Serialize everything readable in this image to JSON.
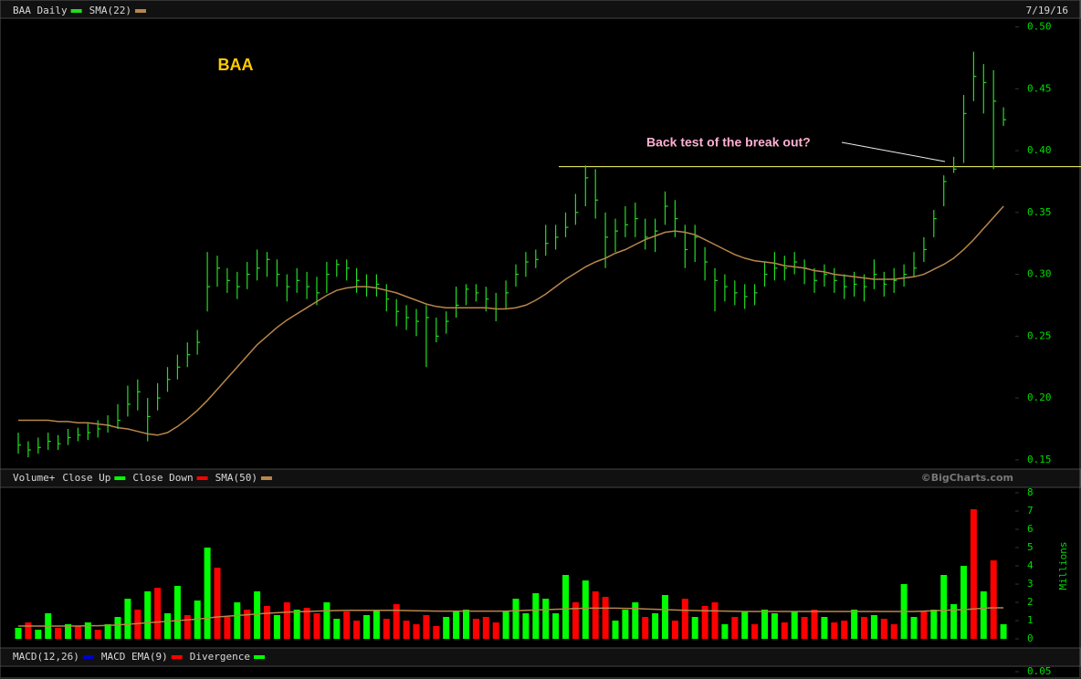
{
  "chart_data": [
    {
      "type": "ohlc",
      "title": "BAA Daily",
      "date": "7/19/16",
      "symbol": "BAA",
      "color": "#22dd22",
      "high": [
        0.172,
        0.165,
        0.168,
        0.172,
        0.17,
        0.175,
        0.176,
        0.18,
        0.182,
        0.186,
        0.195,
        0.21,
        0.215,
        0.2,
        0.212,
        0.225,
        0.235,
        0.245,
        0.255,
        0.318,
        0.315,
        0.305,
        0.302,
        0.31,
        0.32,
        0.318,
        0.312,
        0.3,
        0.305,
        0.302,
        0.298,
        0.31,
        0.312,
        0.312,
        0.305,
        0.3,
        0.3,
        0.292,
        0.28,
        0.275,
        0.272,
        0.275,
        0.265,
        0.27,
        0.29,
        0.292,
        0.292,
        0.29,
        0.285,
        0.295,
        0.308,
        0.318,
        0.32,
        0.34,
        0.34,
        0.35,
        0.365,
        0.388,
        0.385,
        0.35,
        0.345,
        0.355,
        0.358,
        0.345,
        0.345,
        0.367,
        0.36,
        0.34,
        0.34,
        0.322,
        0.305,
        0.3,
        0.295,
        0.292,
        0.292,
        0.31,
        0.318,
        0.315,
        0.318,
        0.312,
        0.305,
        0.308,
        0.305,
        0.3,
        0.302,
        0.3,
        0.312,
        0.302,
        0.305,
        0.308,
        0.318,
        0.33,
        0.352,
        0.38,
        0.395,
        0.445,
        0.48,
        0.47,
        0.465,
        0.435
      ],
      "low": [
        0.155,
        0.152,
        0.155,
        0.158,
        0.158,
        0.162,
        0.165,
        0.166,
        0.168,
        0.172,
        0.175,
        0.185,
        0.19,
        0.165,
        0.19,
        0.205,
        0.215,
        0.225,
        0.235,
        0.27,
        0.29,
        0.285,
        0.28,
        0.288,
        0.295,
        0.298,
        0.29,
        0.278,
        0.285,
        0.28,
        0.275,
        0.285,
        0.298,
        0.295,
        0.285,
        0.282,
        0.282,
        0.27,
        0.258,
        0.255,
        0.25,
        0.225,
        0.245,
        0.252,
        0.265,
        0.275,
        0.278,
        0.27,
        0.262,
        0.272,
        0.29,
        0.298,
        0.305,
        0.315,
        0.32,
        0.33,
        0.34,
        0.355,
        0.345,
        0.305,
        0.318,
        0.33,
        0.33,
        0.32,
        0.318,
        0.34,
        0.33,
        0.305,
        0.31,
        0.295,
        0.27,
        0.278,
        0.275,
        0.272,
        0.275,
        0.29,
        0.295,
        0.295,
        0.3,
        0.292,
        0.285,
        0.29,
        0.285,
        0.28,
        0.282,
        0.278,
        0.288,
        0.282,
        0.285,
        0.29,
        0.298,
        0.31,
        0.33,
        0.355,
        0.382,
        0.39,
        0.44,
        0.43,
        0.385,
        0.42
      ],
      "close": [
        0.162,
        0.158,
        0.16,
        0.165,
        0.163,
        0.168,
        0.17,
        0.172,
        0.175,
        0.178,
        0.182,
        0.195,
        0.205,
        0.185,
        0.2,
        0.215,
        0.225,
        0.235,
        0.245,
        0.29,
        0.305,
        0.295,
        0.29,
        0.3,
        0.305,
        0.312,
        0.3,
        0.29,
        0.295,
        0.29,
        0.285,
        0.3,
        0.308,
        0.305,
        0.295,
        0.29,
        0.292,
        0.28,
        0.27,
        0.265,
        0.262,
        0.265,
        0.25,
        0.262,
        0.275,
        0.288,
        0.285,
        0.28,
        0.272,
        0.285,
        0.3,
        0.31,
        0.312,
        0.325,
        0.33,
        0.338,
        0.35,
        0.378,
        0.36,
        0.33,
        0.335,
        0.34,
        0.345,
        0.33,
        0.335,
        0.355,
        0.345,
        0.32,
        0.33,
        0.31,
        0.295,
        0.29,
        0.285,
        0.282,
        0.285,
        0.3,
        0.305,
        0.305,
        0.31,
        0.305,
        0.295,
        0.3,
        0.295,
        0.29,
        0.292,
        0.29,
        0.3,
        0.292,
        0.295,
        0.3,
        0.305,
        0.32,
        0.345,
        0.375,
        0.385,
        0.43,
        0.46,
        0.455,
        0.44,
        0.425
      ],
      "sma": {
        "name": "SMA(22)",
        "color": "#b8864b",
        "values": [
          0.182,
          0.182,
          0.182,
          0.182,
          0.181,
          0.181,
          0.18,
          0.18,
          0.179,
          0.178,
          0.176,
          0.175,
          0.173,
          0.171,
          0.17,
          0.172,
          0.177,
          0.183,
          0.19,
          0.198,
          0.207,
          0.216,
          0.225,
          0.234,
          0.243,
          0.25,
          0.257,
          0.263,
          0.268,
          0.273,
          0.278,
          0.283,
          0.287,
          0.289,
          0.29,
          0.29,
          0.289,
          0.287,
          0.285,
          0.282,
          0.279,
          0.276,
          0.274,
          0.273,
          0.273,
          0.273,
          0.273,
          0.273,
          0.272,
          0.272,
          0.273,
          0.275,
          0.279,
          0.284,
          0.29,
          0.296,
          0.301,
          0.306,
          0.31,
          0.313,
          0.317,
          0.32,
          0.324,
          0.328,
          0.331,
          0.334,
          0.335,
          0.334,
          0.332,
          0.328,
          0.324,
          0.32,
          0.316,
          0.313,
          0.311,
          0.31,
          0.309,
          0.307,
          0.306,
          0.305,
          0.303,
          0.302,
          0.3,
          0.299,
          0.298,
          0.297,
          0.296,
          0.296,
          0.296,
          0.297,
          0.298,
          0.3,
          0.304,
          0.308,
          0.313,
          0.32,
          0.328,
          0.337,
          0.346,
          0.355
        ]
      },
      "annotation": {
        "text": "Back test of the break out?",
        "level": 0.387,
        "color": "#ffff66"
      },
      "ylim": [
        0.144,
        0.507
      ],
      "yticks": [
        {
          "value": 0.15,
          "label": "0.15"
        },
        {
          "value": 0.2,
          "label": "0.20"
        },
        {
          "value": 0.25,
          "label": "0.25"
        },
        {
          "value": 0.3,
          "label": "0.30"
        },
        {
          "value": 0.35,
          "label": "0.35"
        },
        {
          "value": 0.4,
          "label": "0.40"
        },
        {
          "value": 0.45,
          "label": "0.45"
        },
        {
          "value": 0.5,
          "label": "0.50"
        }
      ]
    },
    {
      "type": "bar",
      "title": "Volume+",
      "series": [
        {
          "name": "Close Up",
          "color": "#00ff00",
          "values": [
            0.6,
            null,
            0.5,
            1.4,
            null,
            0.8,
            null,
            0.9,
            null,
            0.8,
            1.2,
            2.2,
            null,
            2.6,
            null,
            1.4,
            2.9,
            null,
            2.1,
            5.0,
            null,
            null,
            2.0,
            null,
            2.6,
            null,
            1.3,
            null,
            1.6,
            null,
            null,
            2.0,
            1.1,
            null,
            null,
            1.3,
            1.6,
            null,
            null,
            null,
            null,
            null,
            null,
            1.2,
            1.5,
            1.6,
            null,
            null,
            null,
            1.5,
            2.2,
            1.4,
            2.5,
            2.2,
            1.4,
            3.5,
            null,
            3.2,
            null,
            null,
            1.0,
            1.6,
            2.0,
            null,
            1.4,
            2.4,
            null,
            null,
            1.2,
            null,
            null,
            0.8,
            null,
            1.5,
            null,
            1.6,
            1.4,
            null,
            1.5,
            null,
            null,
            1.2,
            null,
            null,
            1.6,
            null,
            1.3,
            null,
            null,
            3.0,
            1.2,
            null,
            1.6,
            3.5,
            1.9,
            4.0,
            null,
            2.6,
            null,
            0.8
          ]
        },
        {
          "name": "Close Down",
          "color": "#ff0000",
          "values": [
            null,
            0.9,
            null,
            null,
            0.6,
            null,
            0.7,
            null,
            0.5,
            null,
            null,
            null,
            1.6,
            null,
            2.8,
            null,
            null,
            1.3,
            null,
            null,
            3.9,
            1.2,
            null,
            1.6,
            null,
            1.8,
            null,
            2.0,
            null,
            1.7,
            1.4,
            null,
            null,
            1.5,
            1.0,
            null,
            null,
            1.1,
            1.9,
            1.0,
            0.8,
            1.3,
            0.7,
            null,
            null,
            null,
            1.1,
            1.2,
            0.9,
            null,
            null,
            null,
            null,
            null,
            null,
            null,
            2.0,
            null,
            2.6,
            2.3,
            null,
            null,
            null,
            1.2,
            null,
            null,
            1.0,
            2.2,
            null,
            1.8,
            2.0,
            null,
            1.2,
            null,
            0.8,
            null,
            null,
            0.9,
            null,
            1.2,
            1.6,
            null,
            0.9,
            1.0,
            null,
            1.2,
            null,
            1.1,
            0.8,
            null,
            null,
            1.5,
            null,
            null,
            null,
            null,
            7.1,
            null,
            4.3,
            null
          ]
        }
      ],
      "sma": {
        "name": "SMA(50)",
        "color": "#b8864b",
        "values": [
          0.7,
          0.7,
          0.7,
          0.7,
          0.7,
          0.7,
          0.7,
          0.72,
          0.72,
          0.74,
          0.76,
          0.8,
          0.84,
          0.88,
          0.92,
          0.96,
          1.0,
          1.04,
          1.08,
          1.14,
          1.2,
          1.24,
          1.28,
          1.32,
          1.36,
          1.4,
          1.43,
          1.46,
          1.48,
          1.5,
          1.52,
          1.54,
          1.55,
          1.56,
          1.56,
          1.56,
          1.56,
          1.56,
          1.56,
          1.55,
          1.54,
          1.53,
          1.52,
          1.52,
          1.52,
          1.52,
          1.52,
          1.52,
          1.52,
          1.52,
          1.54,
          1.56,
          1.58,
          1.6,
          1.62,
          1.64,
          1.66,
          1.68,
          1.68,
          1.68,
          1.68,
          1.67,
          1.66,
          1.64,
          1.62,
          1.6,
          1.58,
          1.56,
          1.55,
          1.54,
          1.53,
          1.52,
          1.51,
          1.5,
          1.5,
          1.5,
          1.5,
          1.5,
          1.5,
          1.5,
          1.5,
          1.5,
          1.5,
          1.5,
          1.5,
          1.5,
          1.5,
          1.5,
          1.5,
          1.5,
          1.5,
          1.52,
          1.54,
          1.56,
          1.58,
          1.6,
          1.64,
          1.68,
          1.7,
          1.7
        ]
      },
      "ylabel": "Millions",
      "credit": "©BigCharts.com",
      "ylim": [
        0,
        8.35
      ],
      "yticks": [
        0,
        1,
        2,
        3,
        4,
        5,
        6,
        7,
        8
      ]
    },
    {
      "type": "macd",
      "legend": [
        {
          "name": "MACD(12,26)",
          "color": "#0000cc"
        },
        {
          "name": "MACD EMA(9)",
          "color": "#ff0000"
        },
        {
          "name": "Divergence",
          "color": "#00ff00"
        }
      ],
      "yticks": [
        {
          "value": 0.05,
          "label": "0.05"
        }
      ]
    }
  ]
}
